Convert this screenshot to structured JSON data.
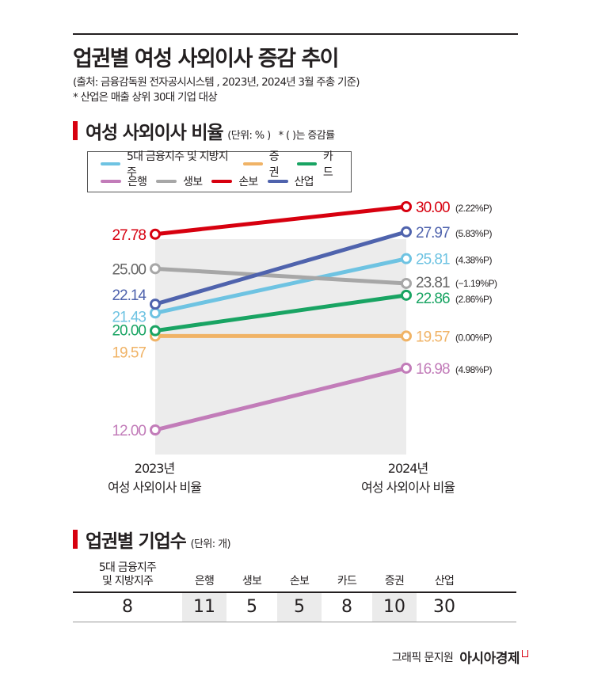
{
  "header": {
    "title": "업권별 여성 사외이사 증감 추이",
    "source": "(출처: 금융감독원 전자공시시스템 , 2023년, 2024년 3월 주총 기준)",
    "footnote": "* 산업은 매출 상위 30대 기업 대상"
  },
  "chart_section": {
    "title": "여성 사외이사 비율",
    "unit": "(단위: % )",
    "note": "* ( )는 증감률"
  },
  "chart_data": {
    "type": "line",
    "title": "여성 사외이사 비율",
    "unit": "%",
    "x": [
      "2023년 여성 사외이사 비율",
      "2024년 여성 사외이사 비율"
    ],
    "x_labels": [
      {
        "year": "2023년",
        "caption": "여성 사외이사 비율"
      },
      {
        "year": "2024년",
        "caption": "여성 사외이사 비율"
      }
    ],
    "ylim": [
      12,
      30
    ],
    "grid": false,
    "legend_position": "top-left",
    "series": [
      {
        "name": "5대 금융지주 및 지방지주",
        "color": "#6ec3e2",
        "values": [
          21.43,
          25.81
        ],
        "labels": [
          "21.43",
          "25.81"
        ],
        "change": "(4.38%P)"
      },
      {
        "name": "증권",
        "color": "#f0b366",
        "values": [
          19.57,
          19.57
        ],
        "labels": [
          "19.57",
          "19.57"
        ],
        "change": "(0.00%P)"
      },
      {
        "name": "카드",
        "color": "#19a463",
        "values": [
          20.0,
          22.86
        ],
        "labels": [
          "20.00",
          "22.86"
        ],
        "change": "(2.86%P)"
      },
      {
        "name": "은행",
        "color": "#c27cb9",
        "values": [
          12.0,
          16.98
        ],
        "labels": [
          "12.00",
          "16.98"
        ],
        "change": "(4.98%P)"
      },
      {
        "name": "생보",
        "color": "#a7a7a7",
        "values": [
          25.0,
          23.81
        ],
        "labels": [
          "25.00",
          "23.81"
        ],
        "change": "(−1.19%P)"
      },
      {
        "name": "손보",
        "color": "#d7000f",
        "values": [
          27.78,
          30.0
        ],
        "labels": [
          "27.78",
          "30.00"
        ],
        "change": "(2.22%P)"
      },
      {
        "name": "산업",
        "color": "#4f63ad",
        "values": [
          22.14,
          27.97
        ],
        "labels": [
          "22.14",
          "27.97"
        ],
        "change": "(5.83%P)"
      }
    ],
    "label_text_colors": {
      "생보": "#666666"
    }
  },
  "table_section": {
    "title": "업권별 기업수",
    "unit": "(단위: 개)",
    "columns": [
      {
        "header": [
          "5대 금융지주",
          "및 지방지주"
        ],
        "value": "8",
        "shaded": false
      },
      {
        "header": [
          "은행"
        ],
        "value": "11",
        "shaded": true
      },
      {
        "header": [
          "생보"
        ],
        "value": "5",
        "shaded": false
      },
      {
        "header": [
          "손보"
        ],
        "value": "5",
        "shaded": true
      },
      {
        "header": [
          "카드"
        ],
        "value": "8",
        "shaded": false
      },
      {
        "header": [
          "증권"
        ],
        "value": "10",
        "shaded": true
      },
      {
        "header": [
          "산업"
        ],
        "value": "30",
        "shaded": false
      }
    ]
  },
  "credit": {
    "text": "그래픽 문지원",
    "brand": "아시아경제"
  }
}
